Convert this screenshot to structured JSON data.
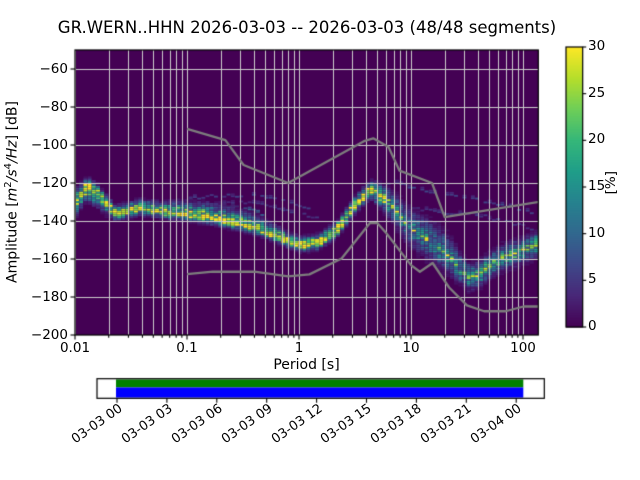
{
  "title": "GR.WERN..HHN   2026-03-03 -- 2026-03-03  (48/48 segments)",
  "axes": {
    "ylabel": {
      "p1": "Amplitude [",
      "i1": "m",
      "s1": "2",
      "sep1": "/",
      "i2": "s",
      "s2": "4",
      "sep2": "/",
      "i3": "Hz",
      "p2": "] [dB]"
    },
    "yticks": [
      "−60",
      "−80",
      "−100",
      "−120",
      "−140",
      "−160",
      "−180",
      "−200"
    ],
    "xticks": [
      "0.01",
      "0.1",
      "1",
      "10",
      "100"
    ],
    "xlabel": "Period [s]"
  },
  "colorbar": {
    "label": "[%]",
    "ticks": [
      "30",
      "25",
      "20",
      "15",
      "10",
      "5",
      "0"
    ]
  },
  "timeline": {
    "labels": [
      "03-03 00",
      "03-03 03",
      "03-03 06",
      "03-03 09",
      "03-03 12",
      "03-03 15",
      "03-03 18",
      "03-03 21",
      "03-04 00"
    ],
    "coverage_color": "#008000",
    "extent_color": "#0000ff"
  },
  "chart_data": {
    "type": "heatmap",
    "description": "Probabilistic power spectral density (PPSD) of seismic noise; probability [%] of PSD amplitude per period bin, viridis colormap, with Peterson new high/low noise model reference curves.",
    "station": "GR.WERN..HHN",
    "date_start": "2026-03-03",
    "date_end": "2026-03-03",
    "segments_used": 48,
    "segments_total": 48,
    "xlabel": "Period [s]",
    "ylabel": "Amplitude [m^2/s^4/Hz] [dB]",
    "xscale": "log",
    "xlim": [
      0.01,
      137
    ],
    "ylim": [
      -200,
      -50
    ],
    "grid": true,
    "colormap": "viridis",
    "colorbar_label": "[%]",
    "colorbar_range": [
      0,
      30
    ],
    "background_color": "#440154",
    "grid_color": "#cccccc",
    "noise_model_color": "#7d7d7d",
    "viridis_stops": [
      "#440154",
      "#482878",
      "#3e4989",
      "#31688e",
      "#26828e",
      "#1f9e89",
      "#35b779",
      "#6ece58",
      "#b5de2b",
      "#fde725"
    ],
    "psd_band_columns": [
      "period_s",
      "mode_db",
      "sigma_up_db",
      "sigma_down_db",
      "peak_percent"
    ],
    "psd_band": [
      [
        0.01,
        -130.5,
        3.2,
        3.6,
        24
      ],
      [
        0.0128,
        -121.8,
        2.4,
        3.6,
        28
      ],
      [
        0.016,
        -125.5,
        2.4,
        3.6,
        26
      ],
      [
        0.023,
        -136.0,
        2.0,
        2.0,
        28
      ],
      [
        0.038,
        -133.0,
        2.2,
        1.9,
        26
      ],
      [
        0.06,
        -135.0,
        2.5,
        1.9,
        26
      ],
      [
        0.1,
        -136.5,
        3.2,
        1.8,
        26
      ],
      [
        0.15,
        -138.0,
        3.8,
        1.8,
        24
      ],
      [
        0.22,
        -140.0,
        4.0,
        1.8,
        24
      ],
      [
        0.35,
        -142.5,
        3.6,
        1.8,
        24
      ],
      [
        0.55,
        -146.5,
        2.8,
        1.8,
        26
      ],
      [
        0.8,
        -150.5,
        2.4,
        1.8,
        28
      ],
      [
        1.05,
        -153.0,
        2.2,
        1.8,
        30
      ],
      [
        1.5,
        -151.5,
        2.2,
        1.8,
        30
      ],
      [
        2.2,
        -144.5,
        2.2,
        2.0,
        30
      ],
      [
        3.2,
        -131.5,
        2.2,
        2.2,
        30
      ],
      [
        4.3,
        -122.8,
        2.2,
        2.6,
        30
      ],
      [
        5.5,
        -126.5,
        2.8,
        3.4,
        24
      ],
      [
        7.0,
        -133.0,
        4.0,
        4.6,
        16
      ],
      [
        9.0,
        -141.0,
        5.0,
        5.2,
        13
      ],
      [
        12.0,
        -147.0,
        5.5,
        5.5,
        13
      ],
      [
        16.0,
        -152.0,
        6.0,
        5.5,
        13
      ],
      [
        22.0,
        -158.5,
        5.5,
        5.0,
        14
      ],
      [
        28.0,
        -165.5,
        4.2,
        4.2,
        15
      ],
      [
        33.0,
        -169.5,
        3.8,
        3.8,
        16
      ],
      [
        42.0,
        -168.0,
        3.6,
        3.6,
        17
      ],
      [
        50.0,
        -163.5,
        3.6,
        3.6,
        17
      ],
      [
        66.0,
        -159.5,
        3.6,
        3.6,
        17
      ],
      [
        85.0,
        -157.0,
        3.5,
        3.6,
        18
      ],
      [
        110.0,
        -154.5,
        3.4,
        3.6,
        18
      ],
      [
        137.0,
        -152.0,
        3.4,
        4.0,
        20
      ]
    ],
    "outlier_traces": [
      {
        "pct": 5.0,
        "points": [
          [
            0.05,
            -132
          ],
          [
            0.1,
            -128.5
          ],
          [
            0.2,
            -126.5
          ],
          [
            0.4,
            -126.5
          ],
          [
            0.8,
            -130
          ],
          [
            1.3,
            -134
          ]
        ]
      },
      {
        "pct": 4.5,
        "points": [
          [
            0.15,
            -131
          ],
          [
            0.3,
            -130
          ],
          [
            0.6,
            -132.5
          ],
          [
            1.0,
            -136
          ],
          [
            1.6,
            -139
          ]
        ]
      },
      {
        "pct": 5.5,
        "points": [
          [
            4.5,
            -122
          ],
          [
            7,
            -119
          ],
          [
            12,
            -123.5
          ],
          [
            25,
            -127
          ],
          [
            50,
            -130
          ],
          [
            100,
            -134
          ],
          [
            137,
            -137
          ]
        ]
      },
      {
        "pct": 4.5,
        "points": [
          [
            5,
            -128
          ],
          [
            9,
            -132.5
          ],
          [
            18,
            -135.5
          ],
          [
            35,
            -136
          ],
          [
            70,
            -140
          ],
          [
            137,
            -145
          ]
        ]
      },
      {
        "pct": 11.0,
        "points": [
          [
            0.13,
            -134.5
          ],
          [
            0.2,
            -132.5
          ],
          [
            0.32,
            -133.5
          ],
          [
            0.5,
            -137
          ]
        ]
      }
    ],
    "noise_models": {
      "high_nhnm": [
        [
          0.1,
          -91.5
        ],
        [
          0.22,
          -97.4
        ],
        [
          0.32,
          -110.5
        ],
        [
          0.8,
          -120.0
        ],
        [
          3.8,
          -98.0
        ],
        [
          4.6,
          -96.5
        ],
        [
          6.3,
          -101.0
        ],
        [
          7.9,
          -113.5
        ],
        [
          15.4,
          -120.0
        ],
        [
          20.0,
          -138.0
        ],
        [
          354.8,
          -126.0
        ]
      ],
      "low_nlnm": [
        [
          0.1,
          -168.0
        ],
        [
          0.17,
          -166.7
        ],
        [
          0.4,
          -166.7
        ],
        [
          0.8,
          -169.2
        ],
        [
          1.24,
          -168.1
        ],
        [
          2.4,
          -159.7
        ],
        [
          4.3,
          -141.1
        ],
        [
          5.0,
          -141.1
        ],
        [
          6.0,
          -146.3
        ],
        [
          10.0,
          -163.2
        ],
        [
          12.0,
          -166.7
        ],
        [
          15.6,
          -162.1
        ],
        [
          21.9,
          -175.0
        ],
        [
          31.6,
          -184.4
        ],
        [
          45.0,
          -187.5
        ],
        [
          70.0,
          -187.5
        ],
        [
          101.0,
          -185.0
        ],
        [
          154.0,
          -185.0
        ]
      ]
    }
  }
}
